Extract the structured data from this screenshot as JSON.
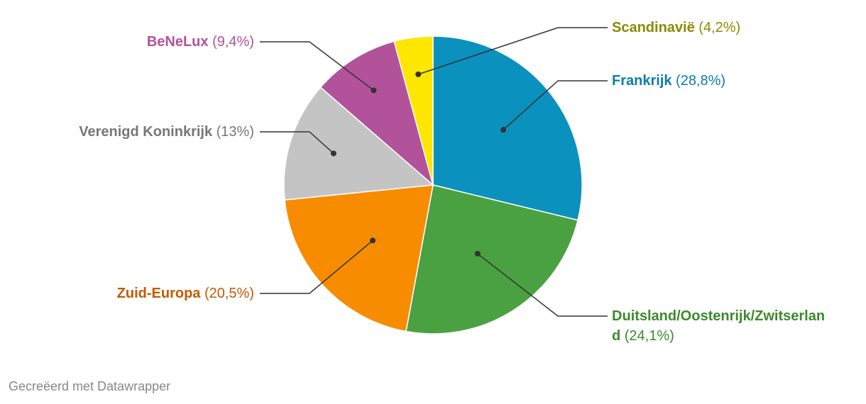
{
  "chart_data": {
    "type": "pie",
    "slices": [
      {
        "label": "Frankrijk",
        "value": 28.8,
        "value_label": "(28,8%)",
        "color": "#0b91bd",
        "label_color": "#0b7ea8",
        "label_side": "right"
      },
      {
        "label": "Duitsland/Oostenrijk/Zwitserland",
        "label_lines": [
          "Duitsland/Oostenrijk/Zwitserlan",
          "d"
        ],
        "value": 24.1,
        "value_label": "(24,1%)",
        "color": "#4aa142",
        "label_color": "#3b8a2c",
        "label_side": "right"
      },
      {
        "label": "Zuid-Europa",
        "value": 20.5,
        "value_label": "(20,5%)",
        "color": "#f78c00",
        "label_color": "#c25a00",
        "label_side": "left"
      },
      {
        "label": "Verenigd Koninkrijk",
        "value": 13,
        "value_label": "(13%)",
        "color": "#c4c4c4",
        "label_color": "#777777",
        "label_side": "left"
      },
      {
        "label": "BeNeLux",
        "value": 9.4,
        "value_label": "(9,4%)",
        "color": "#b2529b",
        "label_color": "#b2529b",
        "label_side": "left"
      },
      {
        "label": "Scandinavië",
        "value": 4.2,
        "value_label": "(4,2%)",
        "color": "#fde600",
        "label_color": "#8a8a00",
        "label_side": "right"
      }
    ]
  },
  "footer": {
    "credit": "Gecreëerd met Datawrapper"
  }
}
